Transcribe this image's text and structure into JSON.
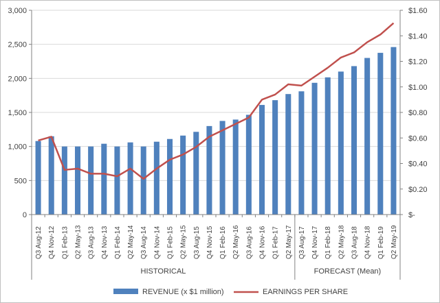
{
  "chart_data": {
    "type": "bar+line",
    "title": "",
    "categories": [
      "Q3 Aug-12",
      "Q4 Nov-12",
      "Q1 Feb-13",
      "Q2 May-13",
      "Q3 Aug-13",
      "Q4 Nov-13",
      "Q1 Feb-14",
      "Q2 May-14",
      "Q3 Aug-14",
      "Q4 Nov-14",
      "Q1 Feb-15",
      "Q2 May-15",
      "Q3 Aug-15",
      "Q4 Nov-15",
      "Q1 Feb-16",
      "Q2 May-16",
      "Q3 Aug-16",
      "Q4 Nov-16",
      "Q1 Feb-17",
      "Q2 May-17",
      "Q3 Aug-17",
      "Q4 Nov-17",
      "Q1 Feb-18",
      "Q2 May-18",
      "Q3 Aug-18",
      "Q4 Nov-18",
      "Q1 Feb-19",
      "Q2 May-19"
    ],
    "groups": [
      {
        "label": "HISTORICAL",
        "from": 0,
        "to": 19
      },
      {
        "label": "FORECAST (Mean)",
        "from": 20,
        "to": 27
      }
    ],
    "series": [
      {
        "name": "REVENUE  (x $1 million)",
        "type": "bar",
        "axis": "left",
        "color": "#4f81bd",
        "values": [
          1080,
          1150,
          1000,
          1000,
          1000,
          1040,
          1000,
          1060,
          1000,
          1070,
          1110,
          1160,
          1215,
          1300,
          1375,
          1395,
          1465,
          1610,
          1680,
          1770,
          1810,
          1935,
          2015,
          2100,
          2180,
          2300,
          2375,
          2460
        ]
      },
      {
        "name": "EARNINGS  PER SHARE",
        "type": "line",
        "axis": "right",
        "color": "#c0504d",
        "values": [
          0.58,
          0.61,
          0.35,
          0.36,
          0.32,
          0.32,
          0.3,
          0.36,
          0.28,
          0.36,
          0.43,
          0.47,
          0.53,
          0.61,
          0.66,
          0.71,
          0.76,
          0.9,
          0.94,
          1.02,
          1.01,
          1.08,
          1.15,
          1.23,
          1.27,
          1.35,
          1.41,
          1.5
        ]
      }
    ],
    "y_left": {
      "range": [
        0,
        3000
      ],
      "ticks": [
        0,
        500,
        1000,
        1500,
        2000,
        2500,
        3000
      ],
      "tick_labels": [
        "0",
        "500",
        "1,000",
        "1,500",
        "2,000",
        "2,500",
        "3,000"
      ]
    },
    "y_right": {
      "range": [
        0,
        1.6
      ],
      "ticks": [
        0,
        0.2,
        0.4,
        0.6,
        0.8,
        1.0,
        1.2,
        1.4,
        1.6
      ],
      "tick_labels": [
        "$-",
        "$0.20",
        "$0.40",
        "$0.60",
        "$0.80",
        "$1.00",
        "$1.20",
        "$1.40",
        "$1.60"
      ]
    },
    "grid": true,
    "legend": "bottom"
  }
}
